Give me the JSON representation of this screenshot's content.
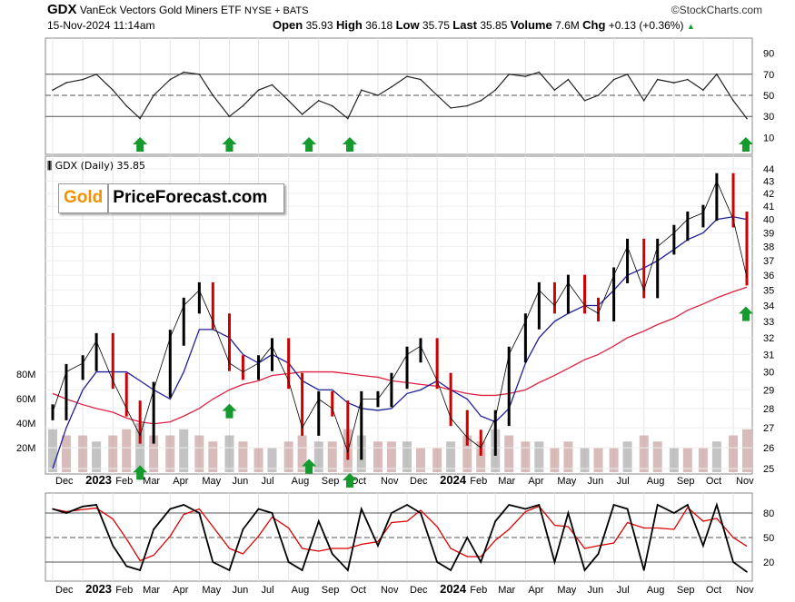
{
  "header": {
    "symbol": "GDX",
    "name": "VanEck Vectors Gold Miners ETF",
    "exchange": "NYSE + BATS",
    "brand": "©StockCharts.com",
    "datetime": "15-Nov-2024 11:14am",
    "open_label": "Open",
    "open": "35.93",
    "high_label": "High",
    "high": "36.18",
    "low_label": "Low",
    "low": "35.75",
    "last_label": "Last",
    "last": "35.85",
    "volume_label": "Volume",
    "volume": "7.6M",
    "chg_label": "Chg",
    "chg": "+0.13 (+0.36%)",
    "chg_arrow": "▲"
  },
  "price_legend": "GDX (Daily) 35.85",
  "watermark": {
    "gold": "Gold",
    "rest": "PriceForecast.com"
  },
  "colors": {
    "up": "#000000",
    "down": "#cc0000",
    "ma_short": "#1f1f99",
    "ma_long": "#dd2244",
    "arrow": "#159a2e",
    "volume": "#c8a0a0",
    "stoch_k": "#000000",
    "stoch_d": "#dd0000"
  },
  "chart_data": [
    {
      "type": "line",
      "panel": "RSI",
      "yticks": [
        10,
        30,
        50,
        70,
        90
      ],
      "ylim": [
        0,
        100
      ],
      "reference_lines": [
        30,
        50,
        70
      ],
      "x": [
        "2022-12-01",
        "2022-12-15",
        "2023-01-01",
        "2023-01-15",
        "2023-02-01",
        "2023-02-15",
        "2023-03-01",
        "2023-03-15",
        "2023-04-01",
        "2023-04-15",
        "2023-05-01",
        "2023-05-15",
        "2023-06-01",
        "2023-06-15",
        "2023-07-01",
        "2023-07-15",
        "2023-08-01",
        "2023-08-15",
        "2023-09-01",
        "2023-09-15",
        "2023-10-01",
        "2023-10-15",
        "2023-11-01",
        "2023-11-15",
        "2023-12-01",
        "2023-12-15",
        "2024-01-01",
        "2024-01-15",
        "2024-02-01",
        "2024-02-15",
        "2024-03-01",
        "2024-03-15",
        "2024-04-01",
        "2024-04-15",
        "2024-05-01",
        "2024-05-15",
        "2024-06-01",
        "2024-06-15",
        "2024-07-01",
        "2024-07-15",
        "2024-08-01",
        "2024-08-15",
        "2024-09-01",
        "2024-09-15",
        "2024-10-01",
        "2024-10-15",
        "2024-11-01",
        "2024-11-15"
      ],
      "values": [
        55,
        62,
        65,
        70,
        55,
        40,
        28,
        50,
        65,
        72,
        70,
        50,
        30,
        40,
        55,
        60,
        45,
        32,
        45,
        40,
        28,
        55,
        50,
        58,
        68,
        65,
        50,
        38,
        40,
        45,
        55,
        70,
        68,
        72,
        55,
        65,
        45,
        50,
        65,
        70,
        45,
        65,
        62,
        65,
        55,
        70,
        45,
        28
      ],
      "arrows": [
        "2023-03-01",
        "2023-06-01",
        "2023-08-22",
        "2023-10-03",
        "2024-11-14"
      ]
    },
    {
      "type": "bar",
      "panel": "price",
      "title": "GDX (Daily) 35.85",
      "scale": "log",
      "ylim": [
        25,
        44
      ],
      "yticks": [
        25,
        26,
        27,
        28,
        29,
        30,
        31,
        32,
        33,
        34,
        35,
        36,
        37,
        38,
        39,
        40,
        41,
        42,
        43,
        44
      ],
      "xticks": [
        "Dec",
        "2023",
        "Feb",
        "Mar",
        "Apr",
        "May",
        "Jun",
        "Jul",
        "Aug",
        "Sep",
        "Oct",
        "Nov",
        "Dec",
        "2024",
        "Feb",
        "Mar",
        "Apr",
        "May",
        "Jun",
        "Jul",
        "Aug",
        "Sep",
        "Oct",
        "Nov"
      ],
      "close": [
        27.8,
        30,
        30.5,
        31.8,
        29.5,
        28,
        26.6,
        29,
        32,
        34,
        35,
        33,
        30.5,
        30,
        30.5,
        31.5,
        29.5,
        27,
        28.5,
        28,
        25.8,
        28.5,
        28.5,
        29.5,
        31,
        31.5,
        29.5,
        27.5,
        26.5,
        26,
        27.5,
        31,
        33,
        35,
        34,
        35.5,
        34,
        33.5,
        36,
        38,
        35,
        38,
        39,
        40,
        40.5,
        43,
        40,
        35.85
      ],
      "ma_short": [
        25,
        27,
        29,
        30,
        30,
        30,
        29.5,
        29,
        28.5,
        30,
        32.5,
        32.5,
        32,
        31,
        30.5,
        31,
        30.5,
        29.5,
        29,
        29,
        28.3,
        28,
        27.9,
        28,
        28.8,
        29,
        29.5,
        29,
        28.5,
        27.6,
        27.3,
        28,
        30.5,
        32,
        33,
        33.5,
        34,
        34,
        35,
        36,
        36.5,
        37,
        37.8,
        38.5,
        39,
        40,
        40.2,
        40
      ],
      "ma_long": [
        28.8,
        28.5,
        28.2,
        28,
        27.8,
        27.5,
        27.3,
        27.2,
        27.3,
        27.6,
        28,
        28.5,
        29,
        29.3,
        29.5,
        29.8,
        29.9,
        30,
        30,
        30,
        29.9,
        29.8,
        29.7,
        29.5,
        29.4,
        29.3,
        29.2,
        29,
        28.8,
        28.7,
        28.7,
        28.8,
        29,
        29.4,
        29.8,
        30.2,
        30.7,
        31,
        31.5,
        32,
        32.4,
        32.8,
        33.2,
        33.7,
        34.1,
        34.5,
        34.9,
        35.2
      ],
      "volume_ticks": [
        "20M",
        "40M",
        "60M",
        "80M"
      ],
      "volume_millions": [
        35,
        30,
        30,
        25,
        30,
        35,
        40,
        30,
        30,
        35,
        30,
        25,
        30,
        25,
        20,
        20,
        25,
        30,
        25,
        25,
        35,
        30,
        25,
        25,
        25,
        20,
        20,
        25,
        30,
        25,
        35,
        30,
        25,
        25,
        20,
        25,
        20,
        20,
        20,
        25,
        30,
        25,
        20,
        20,
        20,
        25,
        30,
        35
      ],
      "arrows": [
        {
          "date": "2023-03-01",
          "price": 25.2
        },
        {
          "date": "2023-06-01",
          "price": 28.3
        },
        {
          "date": "2023-08-22",
          "price": 25.5
        },
        {
          "date": "2023-10-03",
          "price": 24.8
        },
        {
          "date": "2024-11-14",
          "price": 34
        }
      ]
    },
    {
      "type": "line",
      "panel": "Stochastic",
      "yticks": [
        20,
        50,
        80
      ],
      "ylim": [
        0,
        100
      ],
      "reference_lines": [
        20,
        50,
        80
      ],
      "values": [
        85,
        80,
        88,
        90,
        40,
        15,
        10,
        60,
        85,
        90,
        80,
        20,
        10,
        60,
        85,
        80,
        20,
        10,
        70,
        30,
        10,
        85,
        40,
        80,
        90,
        80,
        20,
        10,
        50,
        20,
        70,
        90,
        85,
        90,
        20,
        80,
        10,
        30,
        90,
        85,
        10,
        90,
        80,
        90,
        40,
        90,
        20,
        8
      ]
    }
  ]
}
